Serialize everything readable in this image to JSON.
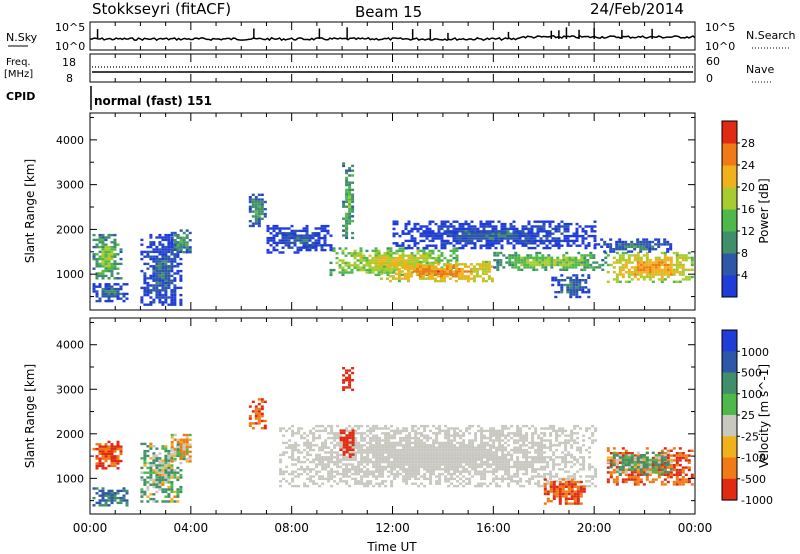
{
  "header": {
    "title": "Stokkseyri (fitACF)",
    "beam": "Beam 15",
    "date": "24/Feb/2014"
  },
  "panels": {
    "nsky": {
      "left_label": "N.Sky",
      "tick_top": "10^5",
      "tick_bottom": "10^0",
      "right_label": "N.Search",
      "right_tick_top": "10^5",
      "right_tick_bottom": "10^0"
    },
    "freq": {
      "left_label_line1": "Freq.",
      "left_label_line2": "[MHz]",
      "tick_top": "18",
      "tick_bottom": "8",
      "right_label": "Nave",
      "right_tick_top": "60",
      "right_tick_bottom": "0"
    },
    "cpid": {
      "left_label": "CPID",
      "text": "normal (fast) 151"
    }
  },
  "colors": {
    "power": [
      "#1f3bd8",
      "#2d57a8",
      "#3f8f6a",
      "#4fb84a",
      "#a8cc2e",
      "#f0b21a",
      "#f07a14",
      "#e02a12"
    ],
    "velocity": [
      "#1f3bd8",
      "#2d57a8",
      "#3f8f6a",
      "#4fb84a",
      "#c8c8c0",
      "#f0b21a",
      "#f07a14",
      "#e02a12"
    ],
    "ground_scatter": "#c8c8c0"
  },
  "chart_data": [
    {
      "type": "heatmap",
      "name": "power",
      "ylabel": "Slant Range [km]",
      "yticks": [
        1000,
        2000,
        3000,
        4000
      ],
      "ylim": [
        200,
        4600
      ],
      "xticks": [
        "00:00",
        "04:00",
        "08:00",
        "12:00",
        "16:00",
        "20:00",
        "00:00"
      ],
      "xlim_hours": [
        0,
        24
      ],
      "colorbar": {
        "label": "Power [dB]",
        "ticks": [
          "4",
          "8",
          "12",
          "16",
          "20",
          "24",
          "28"
        ],
        "range": [
          0,
          32
        ]
      },
      "regions": [
        {
          "t0": 0.1,
          "t1": 1.2,
          "r0": 900,
          "r1": 1900,
          "level": 18
        },
        {
          "t0": 0.1,
          "t1": 1.5,
          "r0": 400,
          "r1": 800,
          "level": 10
        },
        {
          "t0": 2.0,
          "t1": 3.6,
          "r0": 300,
          "r1": 1900,
          "level": 9
        },
        {
          "t0": 3.2,
          "t1": 4.0,
          "r0": 1500,
          "r1": 2000,
          "level": 14
        },
        {
          "t0": 6.3,
          "t1": 6.9,
          "r0": 2100,
          "r1": 2800,
          "level": 14
        },
        {
          "t0": 7.0,
          "t1": 9.5,
          "r0": 1500,
          "r1": 2100,
          "level": 8
        },
        {
          "t0": 9.5,
          "t1": 14.5,
          "r0": 1000,
          "r1": 1600,
          "level": 22
        },
        {
          "t0": 10.0,
          "t1": 10.4,
          "r0": 1800,
          "r1": 3500,
          "level": 17
        },
        {
          "t0": 11.5,
          "t1": 16.0,
          "r0": 850,
          "r1": 1300,
          "level": 27
        },
        {
          "t0": 12.0,
          "t1": 20.0,
          "r0": 1600,
          "r1": 2200,
          "level": 8
        },
        {
          "t0": 16.0,
          "t1": 20.5,
          "r0": 1100,
          "r1": 1500,
          "level": 19
        },
        {
          "t0": 18.3,
          "t1": 19.8,
          "r0": 500,
          "r1": 1000,
          "level": 11
        },
        {
          "t0": 20.5,
          "t1": 23.9,
          "r0": 850,
          "r1": 1500,
          "level": 26
        },
        {
          "t0": 20.0,
          "t1": 23.0,
          "r0": 1500,
          "r1": 1800,
          "level": 10
        }
      ]
    },
    {
      "type": "heatmap",
      "name": "velocity",
      "ylabel": "Slant Range [km]",
      "yticks": [
        1000,
        2000,
        3000,
        4000
      ],
      "ylim": [
        200,
        4600
      ],
      "xticks": [
        "00:00",
        "04:00",
        "08:00",
        "12:00",
        "16:00",
        "20:00",
        "00:00"
      ],
      "xlim_hours": [
        0,
        24
      ],
      "xlabel": "Time UT",
      "colorbar": {
        "label": "Velocity [m s^-1]",
        "ticks": [
          "1000",
          "500",
          "100",
          "25",
          "-25",
          "-100",
          "-500",
          "-1000"
        ]
      },
      "regions": [
        {
          "t0": 0.1,
          "t1": 1.2,
          "r0": 1200,
          "r1": 1900,
          "v": -300
        },
        {
          "t0": 0.1,
          "t1": 1.5,
          "r0": 400,
          "r1": 800,
          "v": 300
        },
        {
          "t0": 2.0,
          "t1": 3.6,
          "r0": 500,
          "r1": 1800,
          "v": 60
        },
        {
          "t0": 3.2,
          "t1": 4.0,
          "r0": 1400,
          "r1": 2000,
          "v": -60
        },
        {
          "t0": 6.3,
          "t1": 6.9,
          "r0": 2100,
          "r1": 2800,
          "v": -300
        },
        {
          "t0": 7.5,
          "t1": 20.0,
          "r0": 850,
          "r1": 2200,
          "v": 0
        },
        {
          "t0": 9.9,
          "t1": 10.4,
          "r0": 1500,
          "r1": 2100,
          "v": -1000
        },
        {
          "t0": 10.0,
          "t1": 10.4,
          "r0": 3000,
          "r1": 3500,
          "v": -500
        },
        {
          "t0": 18.0,
          "t1": 19.6,
          "r0": 450,
          "r1": 1000,
          "v": -300
        },
        {
          "t0": 20.5,
          "t1": 23.9,
          "r0": 850,
          "r1": 1700,
          "v": -300
        },
        {
          "t0": 20.5,
          "t1": 23.0,
          "r0": 1100,
          "r1": 1600,
          "v": 80
        }
      ]
    }
  ]
}
